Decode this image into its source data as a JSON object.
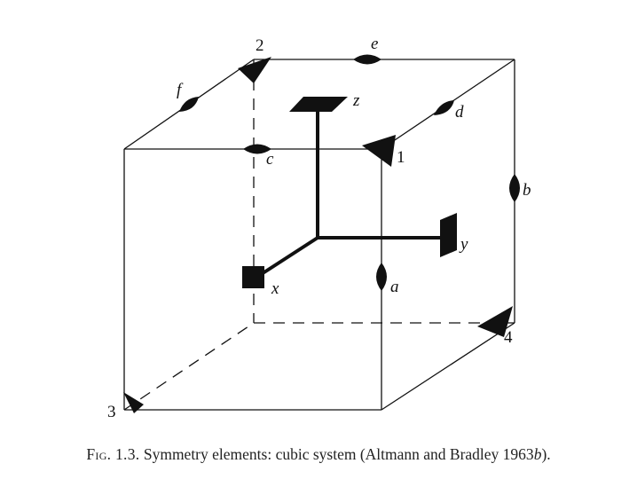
{
  "figure": {
    "labels": {
      "x": "x",
      "y": "y",
      "z": "z",
      "a": "a",
      "b": "b",
      "c": "c",
      "d": "d",
      "e": "e",
      "f": "f",
      "n1": "1",
      "n2": "2",
      "n3": "3",
      "n4": "4"
    },
    "caption": {
      "fig_label": "Fig. 1.3.",
      "text": " Symmetry elements: cubic system (Altmann and Bradley 1963",
      "suffix": "b",
      "end": ")."
    }
  }
}
